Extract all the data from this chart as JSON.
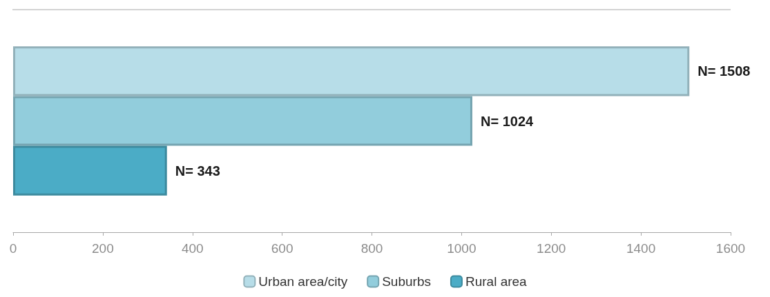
{
  "chart_data": {
    "type": "bar",
    "orientation": "horizontal",
    "categories": [
      null
    ],
    "series": [
      {
        "name": "Urban area/city",
        "color": "#b7dde8",
        "values": [
          1508
        ],
        "value_labels": [
          "N= 1508"
        ]
      },
      {
        "name": "Suburbs",
        "color": "#92cddc",
        "values": [
          1024
        ],
        "value_labels": [
          "N= 1024"
        ]
      },
      {
        "name": "Rural area",
        "color": "#4bacc6",
        "values": [
          343
        ],
        "value_labels": [
          "N= 343"
        ]
      }
    ],
    "xlim": [
      0,
      1600
    ],
    "xticks": [
      0,
      200,
      400,
      600,
      800,
      1000,
      1200,
      1400,
      1600
    ],
    "grid": false,
    "legend": "bottom"
  }
}
